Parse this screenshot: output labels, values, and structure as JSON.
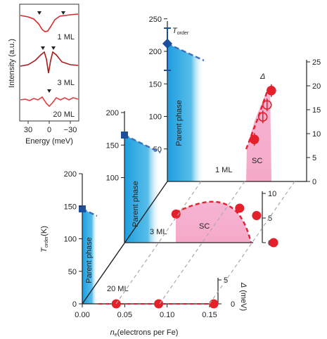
{
  "chart_data": {
    "type": "scatter",
    "inset": {
      "ylabel": "Intensity (a.u.)",
      "xlabel": "Energy (meV)",
      "xticks": [
        "30",
        "0",
        "−30"
      ],
      "series": [
        {
          "name": "1 ML",
          "gap_markers": 2
        },
        {
          "name": "3 ML",
          "gap_markers": 2
        },
        {
          "name": "20 ML",
          "gap_markers": 1
        }
      ]
    },
    "axes": {
      "x": {
        "label": "n",
        "sub": "e",
        "unit": "(electrons per Fe)",
        "ticks": [
          "0.00",
          "0.05",
          "0.10",
          "0.15"
        ],
        "range": [
          0,
          0.17
        ]
      },
      "y": {
        "label": "T",
        "sub": "order",
        "unit": "(K)",
        "ticks": [
          "0",
          "50",
          "100",
          "150",
          "200"
        ],
        "range": [
          0,
          250
        ]
      },
      "y_back": {
        "ticks": [
          "50",
          "100",
          "150",
          "200",
          "250"
        ]
      },
      "y_mid": {
        "ticks": [
          "100",
          "150",
          "200"
        ]
      },
      "right": {
        "label": "Δ",
        "unit": "(meV)",
        "ticks_3ml": [
          "0",
          "5",
          "10"
        ],
        "ticks_1ml": [
          "0",
          "5",
          "10",
          "15",
          "20",
          "25"
        ],
        "label_20ml": "5",
        "zero_20ml": "0"
      }
    },
    "annotations": {
      "parent_phase": "Parent phase",
      "sc": "SC",
      "t_order": "T",
      "t_order_sub": "order",
      "delta": "Δ"
    },
    "layers": [
      {
        "name": "20 ML",
        "T_order": 145,
        "gap_points": [
          {
            "x": 0.04,
            "y": 0
          },
          {
            "x": 0.09,
            "y": 0
          },
          {
            "x": 0.155,
            "y": 0
          }
        ]
      },
      {
        "name": "3 ML",
        "T_order": 165,
        "gap_points": [
          {
            "x": 0.04,
            "y": 5.8
          },
          {
            "x": 0.115,
            "y": 7.0
          },
          {
            "x": 0.135,
            "y": 5.5
          },
          {
            "x": 0.155,
            "y": 0
          }
        ]
      },
      {
        "name": "1 ML",
        "T_order": 215,
        "gap_points": [
          {
            "x": 0.1,
            "y": 8.8
          },
          {
            "x": 0.11,
            "y": 13.5
          },
          {
            "x": 0.115,
            "y": 16.0
          },
          {
            "x": 0.12,
            "y": 19.0
          }
        ]
      }
    ],
    "colors": {
      "parent": "#2aa3e0",
      "sc": "#f3a6c9",
      "point": "#e4202b",
      "order_marker": "#1c4f9c",
      "dashed": "#3b6fc0"
    }
  }
}
